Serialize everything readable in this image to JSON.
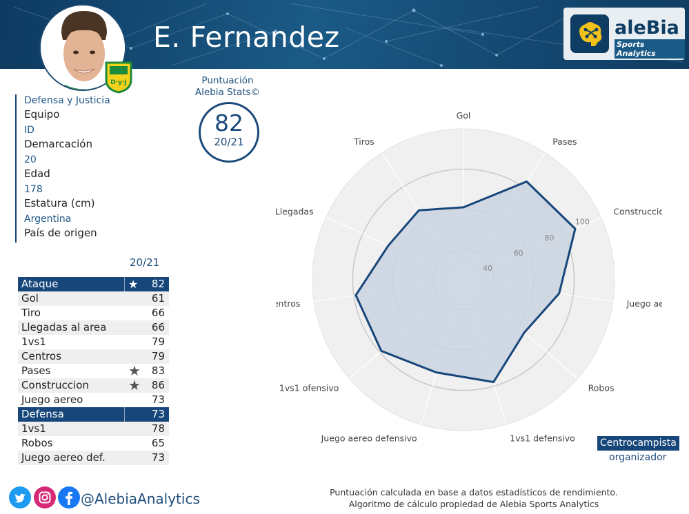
{
  "player": {
    "name": "E. Fernandez"
  },
  "brand": {
    "name": "aleBia",
    "subtitle": "Sports Analytics",
    "handle": "@AlebiaAnalytics"
  },
  "info": [
    {
      "value": "Defensa y Justicia",
      "label": "Equipo"
    },
    {
      "value": "ID",
      "label": "Demarcación"
    },
    {
      "value": "20",
      "label": "Edad"
    },
    {
      "value": "178",
      "label": "Estatura (cm)"
    },
    {
      "value": "Argentina",
      "label": "País de origen"
    }
  ],
  "score": {
    "title_line1": "Puntuación",
    "title_line2": "Alebia Stats©",
    "value": "82",
    "season": "20/21"
  },
  "table": {
    "season": "20/21",
    "rows": [
      {
        "name": "Ataque",
        "value": "82",
        "header": true,
        "star": true
      },
      {
        "name": "Gol",
        "value": "61"
      },
      {
        "name": "Tiro",
        "value": "66"
      },
      {
        "name": "Llegadas al area",
        "value": "66"
      },
      {
        "name": "1vs1",
        "value": "79"
      },
      {
        "name": "Centros",
        "value": "79"
      },
      {
        "name": "Pases",
        "value": "83",
        "star": true
      },
      {
        "name": "Construccion",
        "value": "86",
        "star": true
      },
      {
        "name": "Juego aereo",
        "value": "73"
      },
      {
        "name": "Defensa",
        "value": "73",
        "header": true
      },
      {
        "name": "1vs1",
        "value": "78"
      },
      {
        "name": "Robos",
        "value": "65"
      },
      {
        "name": "Juego aereo def.",
        "value": "73"
      }
    ]
  },
  "role": {
    "label": "Centrocampista",
    "sub": "organizador"
  },
  "footer": {
    "line1": "Puntuación calculada en base a datos estadísticos de rendimiento.",
    "line2": "Algoritmo de cálculo propiedad de Alebia Sports Analytics"
  },
  "colors": {
    "primary": "#17477a",
    "fill": "#c9d3e0",
    "badge_green": "#1c8a3c",
    "badge_yellow": "#f2d21b"
  },
  "chart_data": {
    "type": "radar",
    "categories": [
      "Gol",
      "Pases",
      "Construccion",
      "Juego aereo",
      "Robos",
      "1vs1 defensivo",
      "Juego aereo defensivo",
      "1vs1 ofensivo",
      "Centros",
      "Llegadas",
      "Tiros"
    ],
    "values": [
      61,
      83,
      86,
      73,
      65,
      78,
      73,
      79,
      79,
      66,
      66
    ],
    "r_range": [
      25,
      100
    ],
    "r_ticks": [
      40,
      60,
      80,
      100
    ],
    "grid": true
  }
}
